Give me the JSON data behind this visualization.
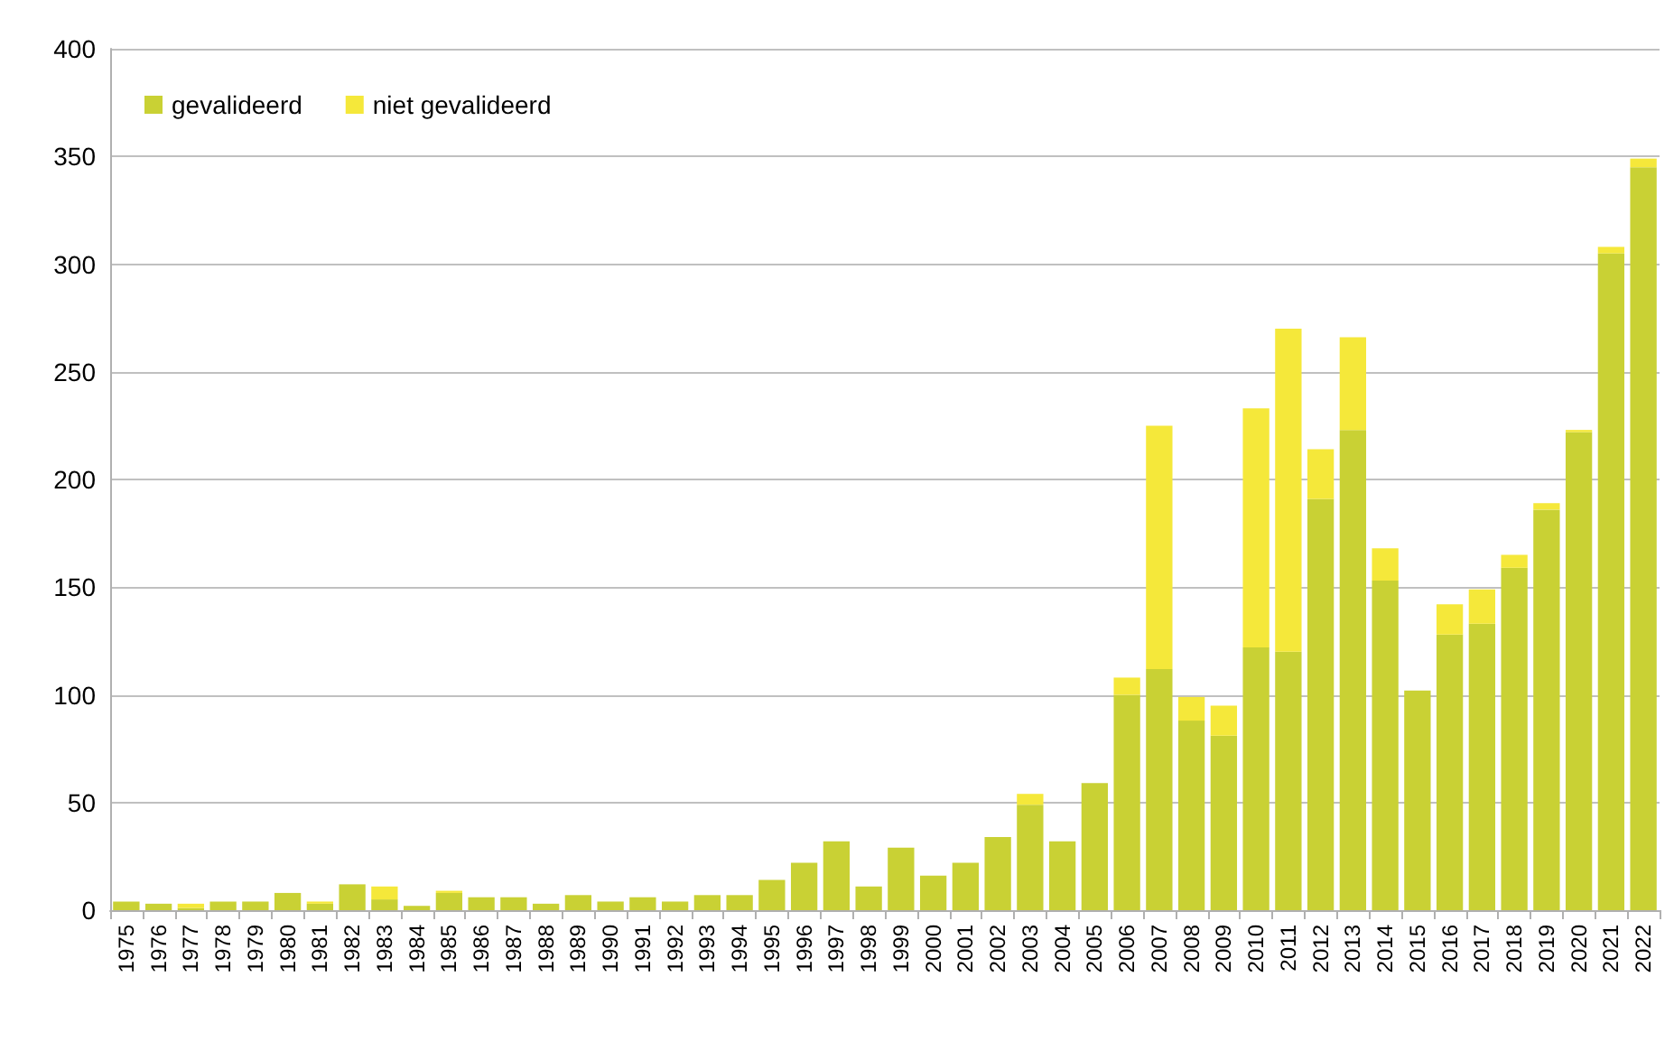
{
  "chart_data": {
    "type": "bar",
    "stacked": true,
    "categories": [
      "1975",
      "1976",
      "1977",
      "1978",
      "1979",
      "1980",
      "1981",
      "1982",
      "1983",
      "1984",
      "1985",
      "1986",
      "1987",
      "1988",
      "1989",
      "1990",
      "1991",
      "1992",
      "1993",
      "1994",
      "1995",
      "1996",
      "1997",
      "1998",
      "1999",
      "2000",
      "2001",
      "2002",
      "2003",
      "2004",
      "2005",
      "2006",
      "2007",
      "2008",
      "2009",
      "2010",
      "2011",
      "2012",
      "2013",
      "2014",
      "2015",
      "2016",
      "2017",
      "2018",
      "2019",
      "2020",
      "2021",
      "2022"
    ],
    "series": [
      {
        "name": "gevalideerd",
        "color": "#c9d134",
        "values": [
          4,
          3,
          1,
          4,
          4,
          8,
          3,
          12,
          5,
          2,
          8,
          6,
          6,
          3,
          7,
          4,
          6,
          4,
          7,
          7,
          14,
          22,
          32,
          11,
          29,
          16,
          22,
          34,
          49,
          32,
          59,
          100,
          112,
          88,
          81,
          122,
          120,
          191,
          223,
          153,
          102,
          128,
          133,
          159,
          186,
          222,
          305,
          345
        ]
      },
      {
        "name": "niet gevalideerd",
        "color": "#f5e83a",
        "values": [
          0,
          0,
          2,
          0,
          0,
          0,
          1,
          0,
          6,
          0,
          1,
          0,
          0,
          0,
          0,
          0,
          0,
          0,
          0,
          0,
          0,
          0,
          0,
          0,
          0,
          0,
          0,
          0,
          5,
          0,
          0,
          8,
          113,
          11,
          14,
          111,
          150,
          23,
          43,
          15,
          0,
          14,
          16,
          6,
          3,
          1,
          3,
          4
        ]
      }
    ],
    "ylim": [
      0,
      400
    ],
    "yticks": [
      0,
      50,
      100,
      150,
      200,
      250,
      300,
      350,
      400
    ],
    "grid": "y",
    "legend": "top left"
  }
}
